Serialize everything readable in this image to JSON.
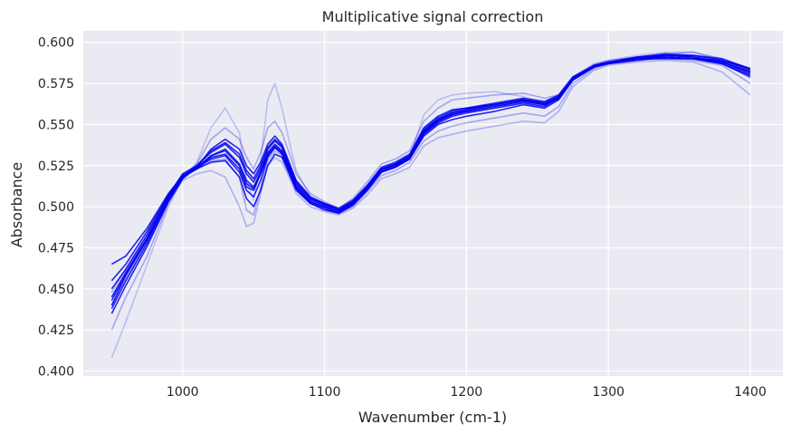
{
  "chart_data": {
    "type": "line",
    "title": "Multiplicative signal correction",
    "xlabel": "Wavenumber (cm-1)",
    "ylabel": "Absorbance",
    "xlim": [
      930,
      1423
    ],
    "ylim": [
      0.397,
      0.607
    ],
    "x_ticks": [
      1000,
      1100,
      1200,
      1300,
      1400
    ],
    "y_ticks": [
      0.4,
      0.425,
      0.45,
      0.475,
      0.5,
      0.525,
      0.55,
      0.575,
      0.6
    ],
    "x_tick_labels": [
      "1000",
      "1100",
      "1200",
      "1300",
      "1400"
    ],
    "y_tick_labels": [
      "0.400",
      "0.425",
      "0.450",
      "0.475",
      "0.500",
      "0.525",
      "0.550",
      "0.575",
      "0.600"
    ],
    "grid": true,
    "background": "#eaeaf2",
    "series_color": "#0000ee",
    "x": [
      950,
      960,
      975,
      990,
      1000,
      1010,
      1020,
      1030,
      1040,
      1045,
      1050,
      1055,
      1060,
      1065,
      1070,
      1075,
      1080,
      1090,
      1100,
      1110,
      1120,
      1130,
      1140,
      1150,
      1160,
      1170,
      1180,
      1190,
      1200,
      1220,
      1240,
      1255,
      1265,
      1275,
      1290,
      1300,
      1320,
      1340,
      1360,
      1380,
      1400
    ],
    "series": [
      {
        "values": [
          0.44,
          0.458,
          0.48,
          0.505,
          0.518,
          0.523,
          0.53,
          0.532,
          0.523,
          0.512,
          0.51,
          0.52,
          0.532,
          0.537,
          0.533,
          0.523,
          0.512,
          0.503,
          0.5,
          0.497,
          0.502,
          0.511,
          0.522,
          0.525,
          0.53,
          0.545,
          0.552,
          0.556,
          0.558,
          0.561,
          0.564,
          0.562,
          0.566,
          0.578,
          0.585,
          0.587,
          0.59,
          0.592,
          0.591,
          0.588,
          0.582
        ],
        "opacity": 0.85
      },
      {
        "values": [
          0.45,
          0.462,
          0.483,
          0.507,
          0.52,
          0.525,
          0.533,
          0.538,
          0.53,
          0.52,
          0.515,
          0.523,
          0.535,
          0.54,
          0.536,
          0.525,
          0.514,
          0.505,
          0.502,
          0.499,
          0.504,
          0.513,
          0.524,
          0.527,
          0.532,
          0.548,
          0.555,
          0.559,
          0.56,
          0.563,
          0.566,
          0.564,
          0.568,
          0.579,
          0.586,
          0.588,
          0.59,
          0.591,
          0.59,
          0.587,
          0.58
        ],
        "opacity": 0.85
      },
      {
        "values": [
          0.465,
          0.47,
          0.487,
          0.508,
          0.519,
          0.523,
          0.527,
          0.528,
          0.518,
          0.505,
          0.5,
          0.51,
          0.525,
          0.532,
          0.53,
          0.52,
          0.51,
          0.502,
          0.498,
          0.496,
          0.501,
          0.51,
          0.521,
          0.524,
          0.529,
          0.543,
          0.55,
          0.553,
          0.555,
          0.558,
          0.562,
          0.56,
          0.565,
          0.577,
          0.585,
          0.588,
          0.59,
          0.59,
          0.59,
          0.589,
          0.584
        ],
        "opacity": 0.85
      },
      {
        "values": [
          0.435,
          0.452,
          0.476,
          0.503,
          0.517,
          0.524,
          0.535,
          0.541,
          0.535,
          0.525,
          0.52,
          0.527,
          0.538,
          0.543,
          0.538,
          0.527,
          0.516,
          0.506,
          0.502,
          0.498,
          0.503,
          0.512,
          0.523,
          0.526,
          0.531,
          0.546,
          0.553,
          0.557,
          0.559,
          0.562,
          0.565,
          0.563,
          0.567,
          0.578,
          0.586,
          0.588,
          0.591,
          0.593,
          0.592,
          0.589,
          0.583
        ],
        "opacity": 0.85
      },
      {
        "values": [
          0.445,
          0.46,
          0.481,
          0.506,
          0.519,
          0.524,
          0.531,
          0.535,
          0.526,
          0.516,
          0.512,
          0.521,
          0.533,
          0.538,
          0.534,
          0.524,
          0.513,
          0.504,
          0.501,
          0.498,
          0.503,
          0.512,
          0.523,
          0.526,
          0.531,
          0.547,
          0.554,
          0.558,
          0.56,
          0.562,
          0.565,
          0.563,
          0.567,
          0.578,
          0.585,
          0.587,
          0.589,
          0.591,
          0.59,
          0.588,
          0.581
        ],
        "opacity": 0.85
      },
      {
        "values": [
          0.455,
          0.465,
          0.485,
          0.507,
          0.519,
          0.524,
          0.529,
          0.531,
          0.521,
          0.51,
          0.506,
          0.516,
          0.53,
          0.536,
          0.533,
          0.522,
          0.512,
          0.503,
          0.5,
          0.497,
          0.502,
          0.511,
          0.522,
          0.525,
          0.53,
          0.545,
          0.552,
          0.556,
          0.558,
          0.561,
          0.564,
          0.562,
          0.566,
          0.578,
          0.586,
          0.588,
          0.59,
          0.592,
          0.591,
          0.588,
          0.582
        ],
        "opacity": 0.85
      },
      {
        "values": [
          0.438,
          0.455,
          0.478,
          0.504,
          0.518,
          0.525,
          0.534,
          0.539,
          0.532,
          0.522,
          0.517,
          0.525,
          0.536,
          0.541,
          0.537,
          0.526,
          0.515,
          0.505,
          0.501,
          0.498,
          0.503,
          0.512,
          0.523,
          0.526,
          0.531,
          0.546,
          0.553,
          0.557,
          0.559,
          0.562,
          0.565,
          0.563,
          0.567,
          0.578,
          0.586,
          0.588,
          0.591,
          0.592,
          0.592,
          0.59,
          0.584
        ],
        "opacity": 0.85
      },
      {
        "values": [
          0.443,
          0.459,
          0.48,
          0.505,
          0.518,
          0.523,
          0.531,
          0.534,
          0.525,
          0.514,
          0.511,
          0.52,
          0.531,
          0.536,
          0.532,
          0.522,
          0.511,
          0.502,
          0.499,
          0.496,
          0.501,
          0.51,
          0.521,
          0.524,
          0.529,
          0.544,
          0.551,
          0.555,
          0.557,
          0.56,
          0.563,
          0.561,
          0.566,
          0.577,
          0.585,
          0.587,
          0.59,
          0.591,
          0.59,
          0.587,
          0.579
        ],
        "opacity": 0.85
      },
      {
        "values": [
          0.425,
          0.445,
          0.47,
          0.502,
          0.518,
          0.526,
          0.541,
          0.548,
          0.541,
          0.53,
          0.523,
          0.533,
          0.548,
          0.552,
          0.545,
          0.533,
          0.52,
          0.508,
          0.503,
          0.499,
          0.505,
          0.515,
          0.526,
          0.529,
          0.534,
          0.552,
          0.56,
          0.565,
          0.566,
          0.568,
          0.569,
          0.566,
          0.568,
          0.579,
          0.587,
          0.589,
          0.591,
          0.593,
          0.594,
          0.59,
          0.583
        ],
        "opacity": 0.3
      },
      {
        "values": [
          0.408,
          0.43,
          0.465,
          0.5,
          0.517,
          0.527,
          0.548,
          0.56,
          0.545,
          0.515,
          0.504,
          0.528,
          0.565,
          0.575,
          0.56,
          0.54,
          0.522,
          0.506,
          0.5,
          0.496,
          0.501,
          0.51,
          0.521,
          0.524,
          0.53,
          0.556,
          0.565,
          0.568,
          0.569,
          0.57,
          0.567,
          0.563,
          0.566,
          0.578,
          0.586,
          0.589,
          0.592,
          0.594,
          0.594,
          0.589,
          0.578
        ],
        "opacity": 0.2
      },
      {
        "values": [
          0.44,
          0.456,
          0.478,
          0.503,
          0.516,
          0.52,
          0.522,
          0.518,
          0.5,
          0.488,
          0.49,
          0.508,
          0.525,
          0.53,
          0.527,
          0.518,
          0.508,
          0.5,
          0.497,
          0.495,
          0.499,
          0.507,
          0.517,
          0.52,
          0.524,
          0.537,
          0.542,
          0.544,
          0.546,
          0.549,
          0.552,
          0.551,
          0.558,
          0.573,
          0.583,
          0.586,
          0.588,
          0.589,
          0.588,
          0.582,
          0.568
        ],
        "opacity": 0.25
      },
      {
        "values": [
          0.448,
          0.462,
          0.482,
          0.506,
          0.519,
          0.523,
          0.528,
          0.529,
          0.518,
          0.498,
          0.495,
          0.512,
          0.528,
          0.534,
          0.531,
          0.521,
          0.511,
          0.503,
          0.499,
          0.496,
          0.5,
          0.509,
          0.519,
          0.522,
          0.527,
          0.54,
          0.546,
          0.549,
          0.551,
          0.554,
          0.557,
          0.555,
          0.561,
          0.575,
          0.584,
          0.587,
          0.589,
          0.59,
          0.589,
          0.586,
          0.575
        ],
        "opacity": 0.3
      }
    ]
  }
}
